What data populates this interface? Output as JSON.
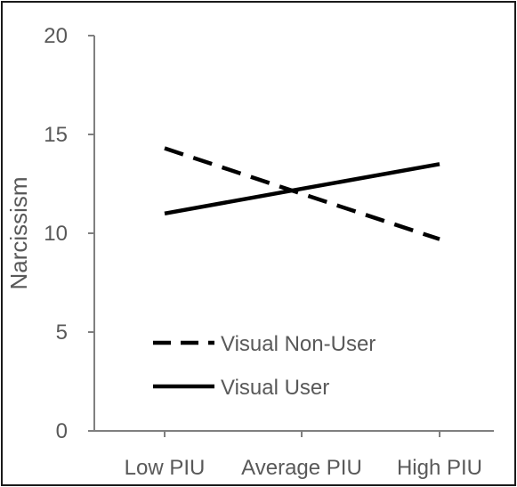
{
  "chart_data": {
    "type": "line",
    "title": "",
    "xlabel": "",
    "ylabel": "Narcissism",
    "categories": [
      "Low PIU",
      "Average PIU",
      "High PIU"
    ],
    "ylim": [
      0,
      20
    ],
    "yticks": [
      0,
      5,
      10,
      15,
      20
    ],
    "grid": false,
    "legend_position": "bottom-left",
    "series": [
      {
        "name": "Visual Non-User",
        "values": [
          14.3,
          12.0,
          9.7
        ],
        "style": "dashed",
        "color": "#000000"
      },
      {
        "name": "Visual User",
        "values": [
          11.0,
          12.25,
          13.5
        ],
        "style": "solid",
        "color": "#000000"
      }
    ]
  }
}
